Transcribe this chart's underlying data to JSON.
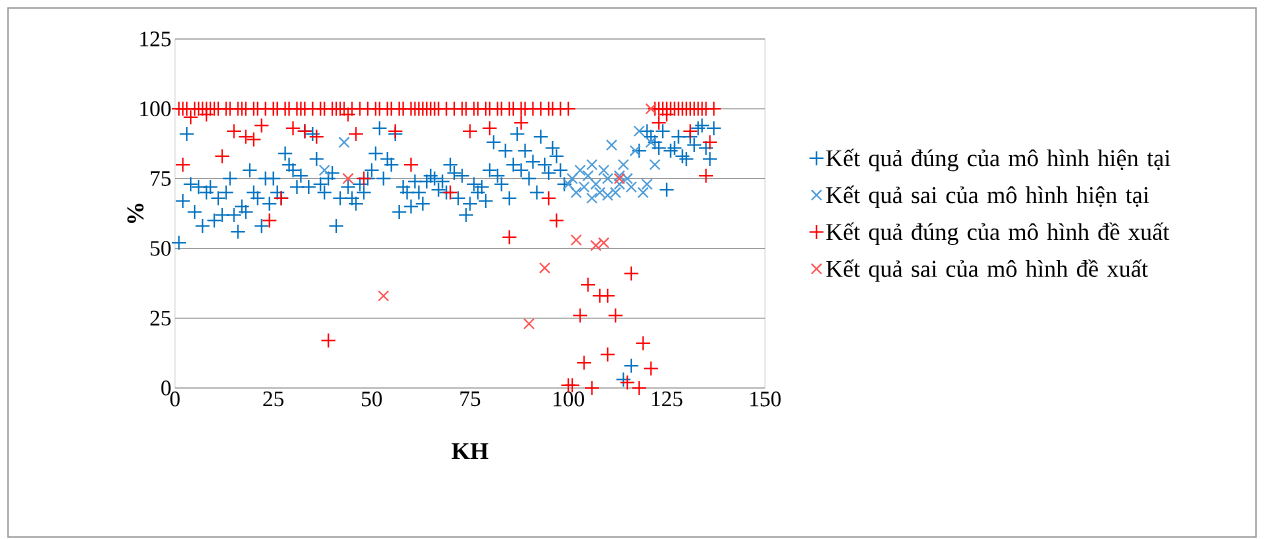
{
  "chart_data": {
    "type": "scatter",
    "xlabel": "KH",
    "ylabel": "%",
    "xlim": [
      0,
      150
    ],
    "ylim": [
      0,
      125
    ],
    "xticks": [
      0,
      25,
      50,
      75,
      100,
      125,
      150
    ],
    "yticks": [
      0,
      25,
      50,
      75,
      100,
      125
    ],
    "grid": "y",
    "legend": "right",
    "series": [
      {
        "name": "Kết quả đúng của mô hình hiện tại",
        "color": "#0070c0",
        "marker": "plus",
        "x": [
          1,
          2,
          3,
          4,
          5,
          6,
          7,
          8,
          9,
          10,
          11,
          12,
          13,
          14,
          15,
          16,
          17,
          18,
          19,
          20,
          21,
          22,
          23,
          24,
          25,
          26,
          27,
          28,
          29,
          30,
          31,
          32,
          33,
          34,
          35,
          36,
          37,
          38,
          39,
          40,
          41,
          42,
          44,
          45,
          46,
          47,
          48,
          49,
          50,
          51,
          52,
          53,
          54,
          55,
          56,
          57,
          58,
          59,
          60,
          61,
          62,
          63,
          64,
          65,
          66,
          67,
          68,
          69,
          70,
          71,
          72,
          73,
          74,
          75,
          76,
          77,
          78,
          79,
          80,
          81,
          82,
          83,
          84,
          85,
          86,
          87,
          88,
          89,
          90,
          91,
          92,
          93,
          94,
          95,
          96,
          97,
          98,
          99,
          114,
          116,
          118,
          120,
          121,
          122,
          123,
          124,
          125,
          126,
          127,
          128,
          129,
          130,
          131,
          132,
          133,
          134,
          135,
          136,
          137
        ],
        "values": [
          52,
          67,
          91,
          73,
          63,
          72,
          58,
          70,
          72,
          60,
          68,
          62,
          70,
          75,
          62,
          56,
          65,
          63,
          78,
          70,
          68,
          58,
          75,
          66,
          75,
          70,
          68,
          84,
          80,
          78,
          72,
          76,
          92,
          72,
          91,
          82,
          73,
          70,
          75,
          77,
          58,
          68,
          72,
          68,
          66,
          73,
          70,
          75,
          78,
          84,
          93,
          75,
          82,
          80,
          91,
          63,
          72,
          70,
          65,
          74,
          70,
          66,
          74,
          76,
          75,
          71,
          74,
          70,
          80,
          77,
          68,
          76,
          62,
          66,
          73,
          70,
          72,
          67,
          78,
          88,
          76,
          73,
          85,
          68,
          80,
          91,
          78,
          85,
          75,
          81,
          70,
          90,
          80,
          77,
          86,
          83,
          78,
          73,
          3,
          8,
          85,
          92,
          90,
          88,
          86,
          92,
          71,
          85,
          86,
          90,
          83,
          82,
          90,
          87,
          93,
          94,
          86,
          82,
          93
        ]
      },
      {
        "name": "Kết quả sai của mô hình hiện tại",
        "color": "#4a9ad8",
        "marker": "cross",
        "x": [
          38,
          43,
          100,
          101,
          102,
          103,
          104,
          105,
          106,
          106,
          107,
          108,
          109,
          110,
          110,
          111,
          112,
          113,
          113,
          114,
          115,
          116,
          117,
          118,
          119,
          120,
          121,
          122
        ],
        "values": [
          78,
          88,
          73,
          75,
          70,
          78,
          72,
          76,
          80,
          68,
          73,
          70,
          78,
          75,
          69,
          87,
          70,
          73,
          76,
          80,
          75,
          72,
          85,
          92,
          70,
          73,
          88,
          80
        ]
      },
      {
        "name": "Kết quả đúng của mô hình đề xuất",
        "color": "#ff0000",
        "marker": "plus",
        "x": [
          1,
          2,
          3,
          5,
          6,
          7,
          8,
          9,
          10,
          11,
          13,
          14,
          16,
          17,
          18,
          20,
          21,
          23,
          25,
          26,
          28,
          29,
          31,
          32,
          33,
          35,
          37,
          38,
          40,
          41,
          42,
          43,
          45,
          47,
          49,
          51,
          52,
          54,
          55,
          57,
          58,
          60,
          61,
          62,
          63,
          64,
          65,
          66,
          67,
          69,
          71,
          73,
          74,
          76,
          77,
          79,
          80,
          82,
          83,
          85,
          86,
          88,
          89,
          91,
          93,
          95,
          96,
          98,
          100,
          122,
          123,
          124,
          125,
          126,
          127,
          128,
          129,
          130,
          131,
          132,
          133,
          134,
          135,
          137,
          2,
          4,
          8,
          12,
          15,
          18,
          20,
          22,
          24,
          27,
          30,
          33,
          36,
          39,
          44,
          46,
          48,
          56,
          60,
          70,
          75,
          80,
          85,
          88,
          95,
          97,
          100,
          101,
          103,
          104,
          105,
          106,
          108,
          110,
          110,
          112,
          115,
          116,
          118,
          119,
          121,
          123,
          125,
          131,
          135,
          136
        ],
        "values": [
          100,
          100,
          100,
          100,
          100,
          100,
          100,
          100,
          100,
          100,
          100,
          100,
          100,
          100,
          100,
          100,
          100,
          100,
          100,
          100,
          100,
          100,
          100,
          100,
          100,
          100,
          100,
          100,
          100,
          100,
          100,
          100,
          100,
          100,
          100,
          100,
          100,
          100,
          100,
          100,
          100,
          100,
          100,
          100,
          100,
          100,
          100,
          100,
          100,
          100,
          100,
          100,
          100,
          100,
          100,
          100,
          100,
          100,
          100,
          100,
          100,
          100,
          100,
          100,
          100,
          100,
          100,
          100,
          100,
          100,
          100,
          100,
          100,
          100,
          100,
          100,
          100,
          100,
          100,
          100,
          100,
          100,
          100,
          100,
          80,
          97,
          98,
          83,
          92,
          90,
          89,
          94,
          60,
          68,
          93,
          92,
          90,
          17,
          98,
          91,
          75,
          92,
          80,
          70,
          92,
          93,
          54,
          95,
          68,
          60,
          1,
          1,
          26,
          9,
          37,
          0,
          33,
          33,
          12,
          26,
          2,
          41,
          0,
          16,
          7,
          95,
          98,
          92,
          76,
          88
        ]
      },
      {
        "name": "Kết quả sai của mô hình đề xuất",
        "color": "#ff5050",
        "marker": "cross",
        "x": [
          44,
          53,
          90,
          94,
          102,
          107,
          109,
          113,
          121
        ],
        "values": [
          75,
          33,
          23,
          43,
          53,
          51,
          52,
          75,
          100
        ]
      }
    ]
  }
}
